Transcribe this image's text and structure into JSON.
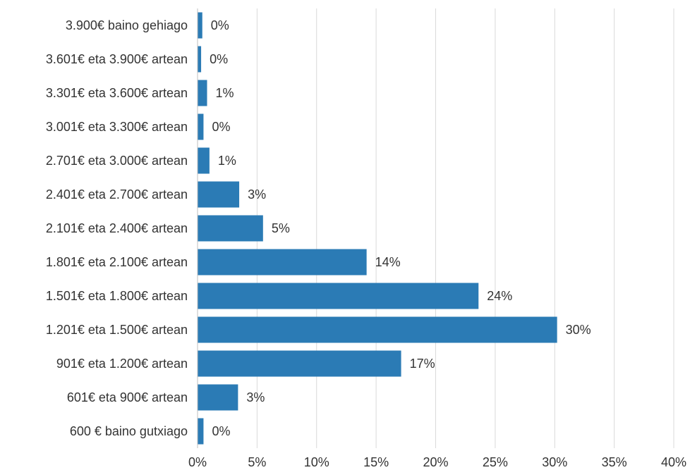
{
  "chart_data": {
    "type": "bar",
    "orientation": "horizontal",
    "title": "",
    "xlabel": "",
    "ylabel": "",
    "categories": [
      "3.900€ baino gehiago",
      "3.601€ eta 3.900€ artean",
      "3.301€ eta 3.600€ artean",
      "3.001€ eta 3.300€ artean",
      "2.701€ eta 3.000€ artean",
      "2.401€ eta 2.700€ artean",
      "2.101€ eta 2.400€ artean",
      "1.801€ eta 2.100€ artean",
      "1.501€ eta 1.800€ artean",
      "1.201€ eta 1.500€ artean",
      "901€ eta 1.200€ artean",
      "601€ eta 900€ artean",
      "600 € baino gutxiago"
    ],
    "values": [
      0.4,
      0.3,
      0.8,
      0.5,
      1.0,
      3.5,
      5.5,
      14.2,
      23.6,
      30.2,
      17.1,
      3.4,
      0.5
    ],
    "data_labels": [
      "0%",
      "0%",
      "1%",
      "0%",
      "1%",
      "3%",
      "5%",
      "14%",
      "24%",
      "30%",
      "17%",
      "3%",
      "0%"
    ],
    "xlim": [
      0,
      40
    ],
    "xticks": [
      0,
      5,
      10,
      15,
      20,
      25,
      30,
      35,
      40
    ],
    "xtick_labels": [
      "0%",
      "5%",
      "10%",
      "15%",
      "20%",
      "25%",
      "30%",
      "35%",
      "40%"
    ],
    "grid": "vertical",
    "legend": "none",
    "bar_color": "#2b7bb5"
  }
}
